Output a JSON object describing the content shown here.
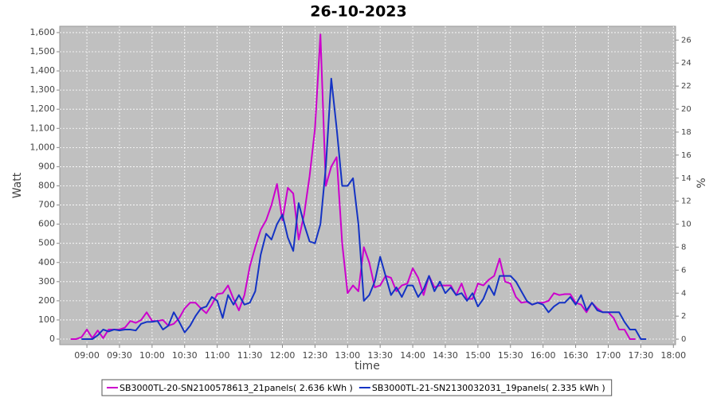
{
  "chart_data": {
    "type": "line",
    "title": "26-10-2023",
    "x_label": "time",
    "y_label": "Watt",
    "y2_label": "%",
    "x": [
      525,
      530,
      535,
      540,
      545,
      550,
      555,
      560,
      565,
      570,
      575,
      580,
      585,
      590,
      595,
      600,
      605,
      610,
      615,
      620,
      625,
      630,
      635,
      640,
      645,
      650,
      655,
      660,
      665,
      670,
      675,
      680,
      685,
      690,
      695,
      700,
      705,
      710,
      715,
      720,
      725,
      730,
      735,
      740,
      745,
      750,
      755,
      760,
      765,
      770,
      775,
      780,
      785,
      790,
      795,
      800,
      805,
      810,
      815,
      820,
      825,
      830,
      835,
      840,
      845,
      850,
      855,
      860,
      865,
      870,
      875,
      880,
      885,
      890,
      895,
      900,
      905,
      910,
      915,
      920,
      925,
      930,
      935,
      940,
      945,
      950,
      955,
      960,
      965,
      970,
      975,
      980,
      985,
      990,
      995,
      1000,
      1005,
      1010,
      1015,
      1020,
      1025,
      1030,
      1035,
      1040,
      1045,
      1050,
      1055
    ],
    "series": [
      {
        "name": "SB3000TL-20-SN2100578613_21panels( 2.636 kWh )",
        "color": "#cc00cc",
        "values": [
          0,
          0,
          10,
          50,
          5,
          45,
          5,
          50,
          50,
          50,
          60,
          95,
          85,
          100,
          140,
          95,
          95,
          100,
          70,
          80,
          110,
          160,
          190,
          190,
          160,
          135,
          180,
          235,
          240,
          280,
          210,
          150,
          230,
          380,
          480,
          570,
          620,
          700,
          810,
          620,
          790,
          760,
          520,
          650,
          850,
          1100,
          1590,
          800,
          900,
          950,
          500,
          240,
          280,
          250,
          480,
          400,
          270,
          280,
          330,
          320,
          250,
          280,
          290,
          370,
          320,
          230,
          330,
          270,
          280,
          280,
          280,
          230,
          290,
          210,
          210,
          290,
          280,
          310,
          330,
          420,
          300,
          290,
          220,
          190,
          195,
          180,
          190,
          190,
          200,
          240,
          230,
          235,
          235,
          190,
          180,
          140,
          190,
          160,
          140,
          140,
          110,
          50,
          50,
          0,
          0,
          null,
          null
        ]
      },
      {
        "name": "SB3000TL-21-SN2130032031_19panels( 2.335 kWh )",
        "color": "#1433c4",
        "values": [
          null,
          null,
          0,
          0,
          0,
          20,
          50,
          40,
          50,
          45,
          50,
          50,
          45,
          80,
          90,
          90,
          95,
          50,
          70,
          140,
          90,
          35,
          70,
          120,
          160,
          170,
          220,
          200,
          110,
          230,
          180,
          230,
          180,
          190,
          250,
          440,
          550,
          520,
          600,
          650,
          530,
          460,
          710,
          600,
          510,
          500,
          600,
          900,
          1360,
          1100,
          800,
          800,
          840,
          600,
          200,
          230,
          300,
          430,
          330,
          230,
          270,
          220,
          280,
          280,
          220,
          260,
          330,
          250,
          300,
          240,
          270,
          230,
          240,
          200,
          240,
          170,
          210,
          280,
          230,
          330,
          330,
          330,
          300,
          250,
          200,
          180,
          190,
          180,
          140,
          170,
          190,
          190,
          220,
          180,
          230,
          150,
          190,
          150,
          140,
          140,
          140,
          140,
          90,
          50,
          50,
          0,
          0
        ]
      }
    ],
    "xlim": [
      515,
      1082
    ],
    "xticks": [
      {
        "value": 540,
        "label": "09:00"
      },
      {
        "value": 570,
        "label": "09:30"
      },
      {
        "value": 600,
        "label": "10:00"
      },
      {
        "value": 630,
        "label": "10:30"
      },
      {
        "value": 660,
        "label": "11:00"
      },
      {
        "value": 690,
        "label": "11:30"
      },
      {
        "value": 720,
        "label": "12:00"
      },
      {
        "value": 750,
        "label": "12:30"
      },
      {
        "value": 780,
        "label": "13:00"
      },
      {
        "value": 810,
        "label": "13:30"
      },
      {
        "value": 840,
        "label": "14:00"
      },
      {
        "value": 870,
        "label": "14:30"
      },
      {
        "value": 900,
        "label": "15:00"
      },
      {
        "value": 930,
        "label": "15:30"
      },
      {
        "value": 960,
        "label": "16:00"
      },
      {
        "value": 990,
        "label": "16:30"
      },
      {
        "value": 1020,
        "label": "17:00"
      },
      {
        "value": 1050,
        "label": "17:30"
      },
      {
        "value": 1080,
        "label": "18:00"
      }
    ],
    "ylim": [
      -29,
      1633
    ],
    "yticks": [
      0,
      100,
      200,
      300,
      400,
      500,
      600,
      700,
      800,
      900,
      {
        "value": 1000,
        "label": "1,000"
      },
      {
        "value": 1100,
        "label": "1,100"
      },
      {
        "value": 1200,
        "label": "1,200"
      },
      {
        "value": 1300,
        "label": "1,300"
      },
      {
        "value": 1400,
        "label": "1,400"
      },
      {
        "value": 1500,
        "label": "1,500"
      },
      {
        "value": 1600,
        "label": "1,600"
      }
    ],
    "y2lim": [
      -0.48,
      27.2
    ],
    "y2ticks": [
      0,
      2,
      4,
      6,
      8,
      10,
      12,
      14,
      16,
      18,
      20,
      22,
      24,
      26
    ],
    "grid": true,
    "plot_background": "#c0c0c0",
    "legend": "bottom"
  }
}
